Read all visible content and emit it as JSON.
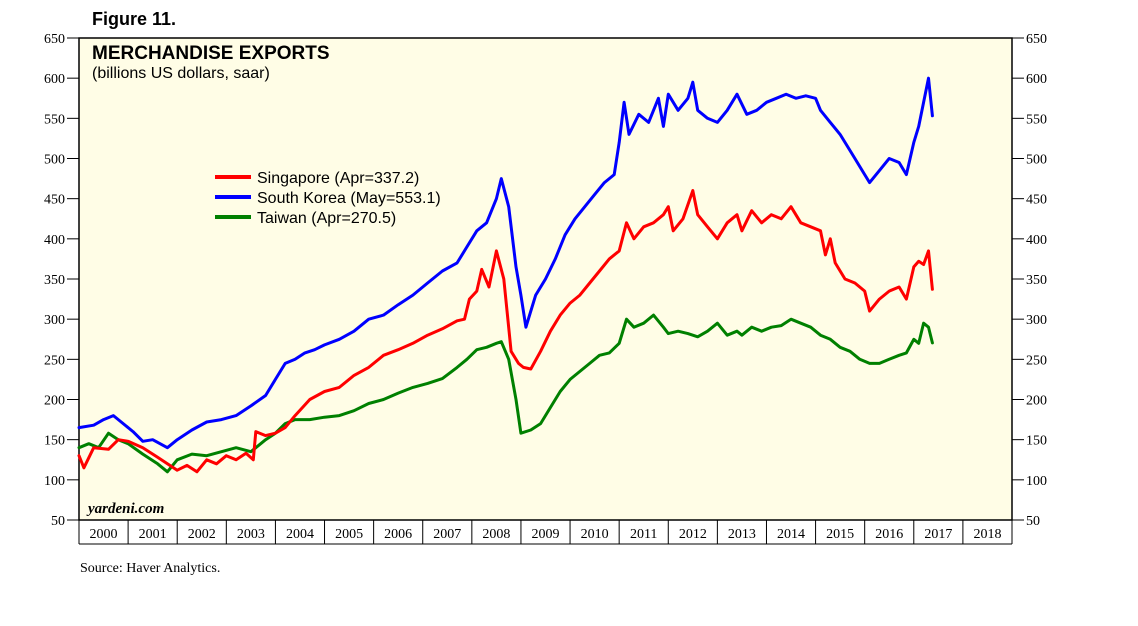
{
  "figure_label": "Figure 11.",
  "source": "Source: Haver Analytics.",
  "watermark": "yardeni.com",
  "colors": {
    "plot_background": "#fffde6",
    "singapore": "#ff0000",
    "south_korea": "#0000ff",
    "taiwan": "#008000"
  },
  "chart_data": {
    "type": "line",
    "title": "MERCHANDISE EXPORTS",
    "subtitle": "(billions US dollars, saar)",
    "xlabel": "",
    "ylabel": "",
    "ylim": [
      50,
      650
    ],
    "xlim": [
      2000,
      2019
    ],
    "yticks": [
      50,
      100,
      150,
      200,
      250,
      300,
      350,
      400,
      450,
      500,
      550,
      600,
      650
    ],
    "yticks_label": [
      "50",
      "100",
      "150",
      "200",
      "250",
      "300",
      "350",
      "400",
      "450",
      "500",
      "550",
      "600",
      "650"
    ],
    "xticks_label": [
      "2000",
      "2001",
      "2002",
      "2003",
      "2004",
      "2005",
      "2006",
      "2007",
      "2008",
      "2009",
      "2010",
      "2011",
      "2012",
      "2013",
      "2014",
      "2015",
      "2016",
      "2017",
      "2018"
    ],
    "legend_position": "upper-left",
    "series": [
      {
        "name": "Singapore",
        "legend": "Singapore (Apr=337.2)",
        "color_key": "singapore",
        "points": [
          [
            2000.0,
            130
          ],
          [
            2000.1,
            115
          ],
          [
            2000.3,
            140
          ],
          [
            2000.6,
            138
          ],
          [
            2000.8,
            150
          ],
          [
            2001.0,
            148
          ],
          [
            2001.3,
            140
          ],
          [
            2001.6,
            128
          ],
          [
            2001.8,
            120
          ],
          [
            2002.0,
            112
          ],
          [
            2002.2,
            118
          ],
          [
            2002.4,
            110
          ],
          [
            2002.6,
            125
          ],
          [
            2002.8,
            120
          ],
          [
            2003.0,
            130
          ],
          [
            2003.2,
            125
          ],
          [
            2003.4,
            133
          ],
          [
            2003.55,
            125
          ],
          [
            2003.6,
            160
          ],
          [
            2003.8,
            155
          ],
          [
            2004.0,
            158
          ],
          [
            2004.2,
            165
          ],
          [
            2004.4,
            180
          ],
          [
            2004.7,
            200
          ],
          [
            2005.0,
            210
          ],
          [
            2005.3,
            215
          ],
          [
            2005.6,
            230
          ],
          [
            2005.9,
            240
          ],
          [
            2006.2,
            255
          ],
          [
            2006.5,
            262
          ],
          [
            2006.8,
            270
          ],
          [
            2007.1,
            280
          ],
          [
            2007.4,
            288
          ],
          [
            2007.7,
            298
          ],
          [
            2007.85,
            300
          ],
          [
            2007.95,
            325
          ],
          [
            2008.1,
            335
          ],
          [
            2008.2,
            362
          ],
          [
            2008.35,
            340
          ],
          [
            2008.5,
            385
          ],
          [
            2008.65,
            350
          ],
          [
            2008.8,
            260
          ],
          [
            2008.95,
            245
          ],
          [
            2009.05,
            240
          ],
          [
            2009.2,
            238
          ],
          [
            2009.4,
            260
          ],
          [
            2009.6,
            285
          ],
          [
            2009.8,
            305
          ],
          [
            2010.0,
            320
          ],
          [
            2010.2,
            330
          ],
          [
            2010.4,
            345
          ],
          [
            2010.6,
            360
          ],
          [
            2010.8,
            375
          ],
          [
            2011.0,
            385
          ],
          [
            2011.15,
            420
          ],
          [
            2011.3,
            400
          ],
          [
            2011.5,
            415
          ],
          [
            2011.7,
            420
          ],
          [
            2011.9,
            430
          ],
          [
            2012.0,
            440
          ],
          [
            2012.1,
            410
          ],
          [
            2012.3,
            425
          ],
          [
            2012.5,
            460
          ],
          [
            2012.6,
            430
          ],
          [
            2012.8,
            415
          ],
          [
            2013.0,
            400
          ],
          [
            2013.2,
            420
          ],
          [
            2013.4,
            430
          ],
          [
            2013.5,
            410
          ],
          [
            2013.7,
            435
          ],
          [
            2013.9,
            420
          ],
          [
            2014.1,
            430
          ],
          [
            2014.3,
            425
          ],
          [
            2014.5,
            440
          ],
          [
            2014.7,
            420
          ],
          [
            2014.9,
            415
          ],
          [
            2015.1,
            410
          ],
          [
            2015.2,
            380
          ],
          [
            2015.3,
            400
          ],
          [
            2015.4,
            370
          ],
          [
            2015.6,
            350
          ],
          [
            2015.8,
            345
          ],
          [
            2016.0,
            335
          ],
          [
            2016.1,
            310
          ],
          [
            2016.3,
            325
          ],
          [
            2016.5,
            335
          ],
          [
            2016.7,
            340
          ],
          [
            2016.85,
            325
          ],
          [
            2017.0,
            365
          ],
          [
            2017.1,
            372
          ],
          [
            2017.2,
            368
          ],
          [
            2017.3,
            385
          ],
          [
            2017.38,
            337.2
          ]
        ]
      },
      {
        "name": "South Korea",
        "legend": "South Korea (May=553.1)",
        "color_key": "south_korea",
        "points": [
          [
            2000.0,
            165
          ],
          [
            2000.3,
            168
          ],
          [
            2000.5,
            175
          ],
          [
            2000.7,
            180
          ],
          [
            2000.9,
            170
          ],
          [
            2001.1,
            160
          ],
          [
            2001.3,
            148
          ],
          [
            2001.5,
            150
          ],
          [
            2001.8,
            140
          ],
          [
            2002.0,
            150
          ],
          [
            2002.3,
            162
          ],
          [
            2002.6,
            172
          ],
          [
            2002.9,
            175
          ],
          [
            2003.2,
            180
          ],
          [
            2003.5,
            192
          ],
          [
            2003.8,
            205
          ],
          [
            2004.0,
            225
          ],
          [
            2004.2,
            245
          ],
          [
            2004.4,
            250
          ],
          [
            2004.6,
            258
          ],
          [
            2004.8,
            262
          ],
          [
            2005.0,
            268
          ],
          [
            2005.3,
            275
          ],
          [
            2005.6,
            285
          ],
          [
            2005.9,
            300
          ],
          [
            2006.2,
            305
          ],
          [
            2006.5,
            318
          ],
          [
            2006.8,
            330
          ],
          [
            2007.1,
            345
          ],
          [
            2007.4,
            360
          ],
          [
            2007.7,
            370
          ],
          [
            2007.9,
            390
          ],
          [
            2008.1,
            410
          ],
          [
            2008.3,
            420
          ],
          [
            2008.5,
            450
          ],
          [
            2008.6,
            475
          ],
          [
            2008.75,
            440
          ],
          [
            2008.9,
            365
          ],
          [
            2009.0,
            330
          ],
          [
            2009.1,
            290
          ],
          [
            2009.3,
            330
          ],
          [
            2009.5,
            350
          ],
          [
            2009.7,
            375
          ],
          [
            2009.9,
            405
          ],
          [
            2010.1,
            425
          ],
          [
            2010.3,
            440
          ],
          [
            2010.5,
            455
          ],
          [
            2010.7,
            470
          ],
          [
            2010.9,
            480
          ],
          [
            2011.0,
            520
          ],
          [
            2011.1,
            570
          ],
          [
            2011.2,
            530
          ],
          [
            2011.4,
            555
          ],
          [
            2011.6,
            545
          ],
          [
            2011.8,
            575
          ],
          [
            2011.9,
            540
          ],
          [
            2012.0,
            580
          ],
          [
            2012.2,
            560
          ],
          [
            2012.4,
            575
          ],
          [
            2012.5,
            595
          ],
          [
            2012.6,
            560
          ],
          [
            2012.8,
            550
          ],
          [
            2013.0,
            545
          ],
          [
            2013.2,
            560
          ],
          [
            2013.4,
            580
          ],
          [
            2013.6,
            555
          ],
          [
            2013.8,
            560
          ],
          [
            2014.0,
            570
          ],
          [
            2014.2,
            575
          ],
          [
            2014.4,
            580
          ],
          [
            2014.6,
            575
          ],
          [
            2014.8,
            578
          ],
          [
            2015.0,
            575
          ],
          [
            2015.1,
            560
          ],
          [
            2015.3,
            545
          ],
          [
            2015.5,
            530
          ],
          [
            2015.7,
            510
          ],
          [
            2015.8,
            500
          ],
          [
            2016.0,
            480
          ],
          [
            2016.1,
            470
          ],
          [
            2016.3,
            485
          ],
          [
            2016.5,
            500
          ],
          [
            2016.7,
            495
          ],
          [
            2016.85,
            480
          ],
          [
            2017.0,
            520
          ],
          [
            2017.1,
            540
          ],
          [
            2017.2,
            570
          ],
          [
            2017.3,
            600
          ],
          [
            2017.38,
            553.1
          ]
        ]
      },
      {
        "name": "Taiwan",
        "legend": "Taiwan (Apr=270.5)",
        "color_key": "taiwan",
        "points": [
          [
            2000.0,
            140
          ],
          [
            2000.2,
            145
          ],
          [
            2000.4,
            140
          ],
          [
            2000.6,
            158
          ],
          [
            2000.8,
            150
          ],
          [
            2001.0,
            145
          ],
          [
            2001.3,
            132
          ],
          [
            2001.6,
            120
          ],
          [
            2001.8,
            110
          ],
          [
            2002.0,
            125
          ],
          [
            2002.3,
            132
          ],
          [
            2002.6,
            130
          ],
          [
            2002.9,
            135
          ],
          [
            2003.2,
            140
          ],
          [
            2003.5,
            135
          ],
          [
            2003.8,
            150
          ],
          [
            2004.0,
            158
          ],
          [
            2004.2,
            170
          ],
          [
            2004.4,
            175
          ],
          [
            2004.7,
            175
          ],
          [
            2005.0,
            178
          ],
          [
            2005.3,
            180
          ],
          [
            2005.6,
            186
          ],
          [
            2005.9,
            195
          ],
          [
            2006.2,
            200
          ],
          [
            2006.5,
            208
          ],
          [
            2006.8,
            215
          ],
          [
            2007.1,
            220
          ],
          [
            2007.4,
            226
          ],
          [
            2007.7,
            240
          ],
          [
            2007.9,
            250
          ],
          [
            2008.1,
            262
          ],
          [
            2008.3,
            265
          ],
          [
            2008.5,
            270
          ],
          [
            2008.6,
            272
          ],
          [
            2008.75,
            250
          ],
          [
            2008.9,
            200
          ],
          [
            2009.0,
            158
          ],
          [
            2009.2,
            162
          ],
          [
            2009.4,
            170
          ],
          [
            2009.6,
            190
          ],
          [
            2009.8,
            210
          ],
          [
            2010.0,
            225
          ],
          [
            2010.2,
            235
          ],
          [
            2010.4,
            245
          ],
          [
            2010.6,
            255
          ],
          [
            2010.8,
            258
          ],
          [
            2011.0,
            270
          ],
          [
            2011.15,
            300
          ],
          [
            2011.3,
            290
          ],
          [
            2011.5,
            295
          ],
          [
            2011.7,
            305
          ],
          [
            2011.9,
            290
          ],
          [
            2012.0,
            282
          ],
          [
            2012.2,
            285
          ],
          [
            2012.4,
            282
          ],
          [
            2012.6,
            278
          ],
          [
            2012.8,
            285
          ],
          [
            2013.0,
            295
          ],
          [
            2013.2,
            280
          ],
          [
            2013.4,
            285
          ],
          [
            2013.5,
            280
          ],
          [
            2013.7,
            290
          ],
          [
            2013.9,
            285
          ],
          [
            2014.1,
            290
          ],
          [
            2014.3,
            292
          ],
          [
            2014.5,
            300
          ],
          [
            2014.7,
            295
          ],
          [
            2014.9,
            290
          ],
          [
            2015.1,
            280
          ],
          [
            2015.3,
            275
          ],
          [
            2015.5,
            265
          ],
          [
            2015.7,
            260
          ],
          [
            2015.9,
            250
          ],
          [
            2016.1,
            245
          ],
          [
            2016.3,
            245
          ],
          [
            2016.5,
            250
          ],
          [
            2016.7,
            255
          ],
          [
            2016.85,
            258
          ],
          [
            2017.0,
            275
          ],
          [
            2017.1,
            270
          ],
          [
            2017.2,
            295
          ],
          [
            2017.3,
            290
          ],
          [
            2017.38,
            270.5
          ]
        ]
      }
    ]
  }
}
